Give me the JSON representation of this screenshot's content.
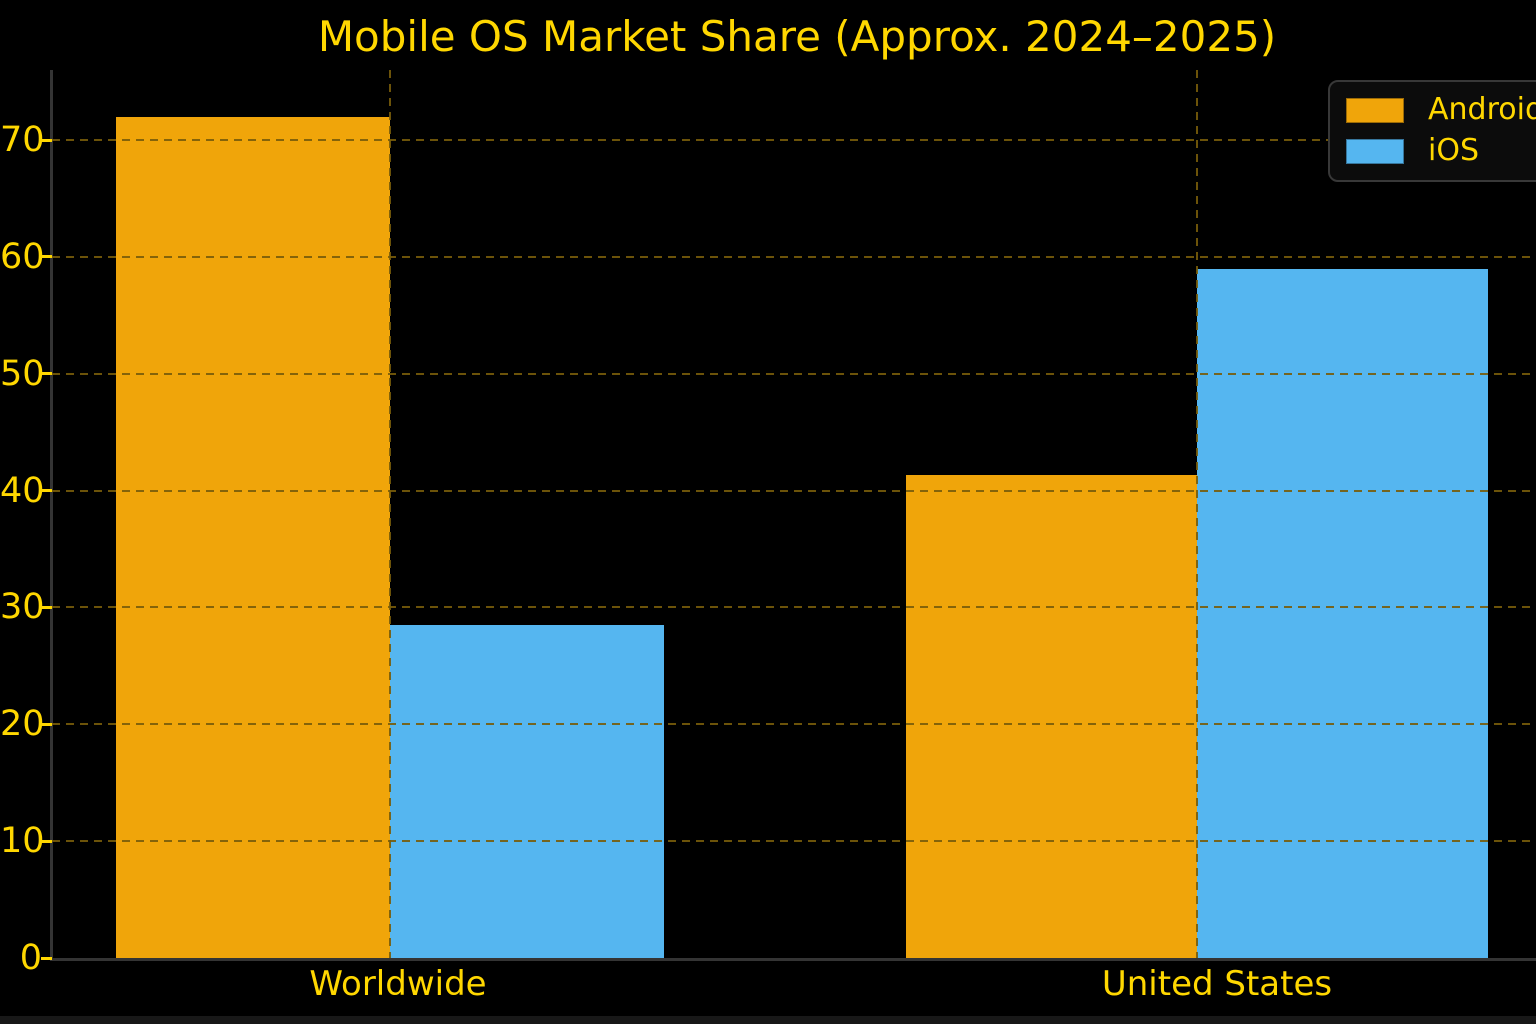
{
  "title": "Mobile OS Market Share (Approx. 2024–2025)",
  "colors": {
    "background": "#000000",
    "text_gold": "#FFD700",
    "grid": "#785C0A",
    "spine": "#343434",
    "android": "#F0A50A",
    "ios": "#55B6F0",
    "legend_background": "#0C0C0C",
    "legend_border": "#383838"
  },
  "legend": {
    "position": "upper-right",
    "items": [
      {
        "label": "Android",
        "color": "#F0A50A"
      },
      {
        "label": "iOS",
        "color": "#55B6F0"
      }
    ]
  },
  "chart_data": {
    "type": "bar",
    "title": "Mobile OS Market Share (Approx. 2024–2025)",
    "categories": [
      "Worldwide",
      "United States"
    ],
    "series": [
      {
        "name": "Android",
        "color": "#F0A50A",
        "values": [
          72.0,
          41.3
        ]
      },
      {
        "name": "iOS",
        "color": "#55B6F0",
        "values": [
          28.5,
          59.0
        ]
      }
    ],
    "xlabel": "",
    "ylabel": "",
    "ylim": [
      0,
      76
    ],
    "yticks": [
      0,
      10,
      20,
      30,
      40,
      50,
      60,
      70
    ],
    "grid": {
      "horizontal": true,
      "vertical": true,
      "style": "dashed",
      "above_bars": true
    },
    "legend_position": "upper right"
  }
}
